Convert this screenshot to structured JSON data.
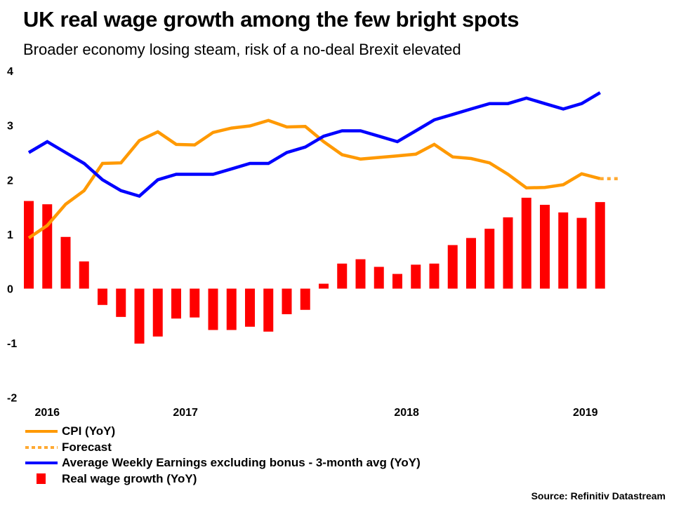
{
  "title": "UK real wage growth among the few bright spots",
  "subtitle": "Broader economy losing steam, risk of a no-deal Brexit elevated",
  "source": "Source: Refinitiv Datastream",
  "colors": {
    "cpi": "#FF9900",
    "forecast": "#FFAA33",
    "awe": "#0000FF",
    "real_wage": "#FF0000"
  },
  "legend": [
    {
      "label": "CPI (YoY)",
      "type": "line",
      "color_key": "cpi"
    },
    {
      "label": "Forecast",
      "type": "dotted",
      "color_key": "forecast"
    },
    {
      "label": "Average Weekly Earnings excluding bonus - 3-month avg (YoY)",
      "type": "line",
      "color_key": "awe"
    },
    {
      "label": "Real wage growth (YoY)",
      "type": "bar",
      "color_key": "real_wage"
    }
  ],
  "chart_data": {
    "type": "bar",
    "title": "UK real wage growth among the few bright spots",
    "subtitle": "Broader economy losing steam, risk of a no-deal Brexit elevated",
    "xlabel": "",
    "ylabel": "",
    "ylim": [
      -2,
      4
    ],
    "yticks": [
      "4",
      "3",
      "2",
      "1",
      "0",
      "-1",
      "-2"
    ],
    "ytick_values": [
      4,
      3,
      2,
      1,
      0,
      -1,
      -2
    ],
    "xtick_labels": [
      {
        "label": "2016",
        "index": 1
      },
      {
        "label": "2017",
        "index": 8.5
      },
      {
        "label": "2018",
        "index": 20.5
      },
      {
        "label": "2019",
        "index": 30.2
      }
    ],
    "grid": false,
    "legend_position": "bottom-left",
    "n_periods": 32,
    "series": [
      {
        "name": "Real wage growth (YoY)",
        "kind": "bar",
        "color_key": "real_wage",
        "values": [
          1.61,
          1.55,
          0.95,
          0.5,
          -0.3,
          -0.52,
          -1.01,
          -0.88,
          -0.55,
          -0.53,
          -0.76,
          -0.76,
          -0.7,
          -0.79,
          -0.47,
          -0.39,
          0.09,
          0.46,
          0.54,
          0.4,
          0.27,
          0.44,
          0.46,
          0.8,
          0.93,
          1.1,
          1.31,
          1.67,
          1.54,
          1.4,
          1.3,
          1.59
        ]
      },
      {
        "name": "CPI (YoY)",
        "kind": "line",
        "color_key": "cpi",
        "values": [
          0.93,
          1.16,
          1.55,
          1.8,
          2.3,
          2.31,
          2.72,
          2.88,
          2.65,
          2.64,
          2.87,
          2.95,
          2.99,
          3.09,
          2.97,
          2.98,
          2.7,
          2.46,
          2.38,
          2.41,
          2.44,
          2.47,
          2.65,
          2.42,
          2.39,
          2.31,
          2.1,
          1.85,
          1.86,
          1.91,
          2.11,
          2.02
        ]
      },
      {
        "name": "Forecast",
        "kind": "dotted-line",
        "color_key": "forecast",
        "start_index": 31,
        "values": [
          2.02,
          2.02
        ]
      },
      {
        "name": "Average Weekly Earnings excluding bonus - 3-month avg (YoY)",
        "kind": "line",
        "color_key": "awe",
        "values": [
          2.5,
          2.7,
          2.5,
          2.3,
          2.0,
          1.8,
          1.7,
          2.0,
          2.1,
          2.1,
          2.1,
          2.2,
          2.3,
          2.3,
          2.5,
          2.6,
          2.8,
          2.9,
          2.9,
          2.8,
          2.7,
          2.9,
          3.1,
          3.2,
          3.3,
          3.4,
          3.4,
          3.5,
          3.4,
          3.3,
          3.4,
          3.6
        ]
      }
    ]
  }
}
